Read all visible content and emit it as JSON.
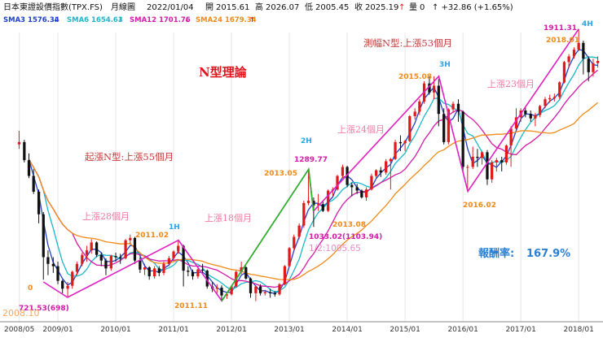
{
  "header": {
    "instrument": "日本東證設價指數(TPX.FS)",
    "period": "月線圖",
    "date": "2022/01/04",
    "open_label": "開",
    "open": "2015.61",
    "high_label": "高",
    "high": "2026.07",
    "low_label": "低",
    "low": "2005.45",
    "close_label": "收",
    "close": "2025.19",
    "close_arrow": "↑",
    "volume_label": "量",
    "volume": "0",
    "change": "↑ +32.86 (+1.65%)"
  },
  "ma_legend": [
    {
      "label": "SMA3 1576.34",
      "arrow": "↓",
      "color": "#1e40c8"
    },
    {
      "label": "SMA6 1654.63",
      "arrow": "↓",
      "color": "#19b8c8"
    },
    {
      "label": "SMA12 1701.76",
      "arrow": "↓",
      "color": "#d41aa8"
    },
    {
      "label": "SMA24 1679.34",
      "arrow": "↑",
      "color": "#f08a18"
    }
  ],
  "annotations": {
    "title": "N型理論",
    "start_up": "起漲N型:上漲55個月",
    "up28": "上漲28個月",
    "up18": "上漲18個月",
    "up24": "上漲24個月",
    "up23": "上漲23個月",
    "measured": "測幅N型:上漲53個月",
    "return_label": "報酬率:",
    "return_value": "167.9%"
  },
  "colors": {
    "up": "#e01a1a",
    "down": "#111111",
    "n_line": "#e020c0",
    "wave_green": "#22b822",
    "ma3": "#1e40c8",
    "ma6": "#19b8c8",
    "ma12": "#d41aa8",
    "ma24": "#f08a18",
    "tick_orange": "#f08a18",
    "tick_magenta": "#d41aa8",
    "tick_cyan": "#2aa6e6"
  },
  "chart_data": {
    "type": "candlestick",
    "period": "monthly",
    "x_tick_labels": [
      "2008/05",
      "2009/01",
      "2010/01",
      "2011/01",
      "2012/01",
      "2013/01",
      "2014/01",
      "2015/01",
      "2016/01",
      "2017/01",
      "2018/01"
    ],
    "price_labels": [
      {
        "text": "721.53(698)",
        "date": "2009/03",
        "price": 721.53
      },
      {
        "text": "2011.02",
        "date": "2011/02",
        "price": 1000
      },
      {
        "text": "2011.11",
        "date": "2011/11",
        "price": 706
      },
      {
        "text": "1289.77",
        "date": "2013/05",
        "price": 1289.77
      },
      {
        "text": "2013.05",
        "date": "2013/05",
        "price": 1289.77
      },
      {
        "text": "1033.02(1103.94)",
        "date": "2013/06",
        "price": 1033.02
      },
      {
        "text": "2013.08",
        "date": "2013/08",
        "price": 1106
      },
      {
        "text": "1/2:1005.65",
        "date": "2013/06",
        "price": 1005.65
      },
      {
        "text": "2015.08",
        "date": "2015/08",
        "price": 1702
      },
      {
        "text": "2016.02",
        "date": "2016/02",
        "price": 1192
      },
      {
        "text": "2018.01",
        "date": "2018/01",
        "price": 1911.31
      },
      {
        "text": "1911.31",
        "date": "2018/01",
        "price": 1911.31
      }
    ],
    "wave_labels": [
      "1H",
      "2H",
      "3H",
      "4H"
    ],
    "partial_labels": [
      "2008.10",
      "0"
    ],
    "n_pattern_points": [
      {
        "date": "2008/10",
        "price": 790
      },
      {
        "date": "2009/03",
        "price": 721.53
      },
      {
        "date": "2011/02",
        "price": 975
      },
      {
        "date": "2011/11",
        "price": 706
      },
      {
        "date": "2013/05",
        "price": 1289.77
      },
      {
        "date": "2013/06",
        "price": 1103.94
      },
      {
        "date": "2015/08",
        "price": 1702
      },
      {
        "date": "2016/02",
        "price": 1192
      },
      {
        "date": "2018/01",
        "price": 1911.31
      }
    ],
    "candles": [
      [
        2008.33,
        1400,
        1460,
        1380,
        1410
      ],
      [
        2008.42,
        1410,
        1420,
        1320,
        1330
      ],
      [
        2008.5,
        1330,
        1360,
        1250,
        1260
      ],
      [
        2008.58,
        1260,
        1290,
        1180,
        1190
      ],
      [
        2008.67,
        1190,
        1200,
        1050,
        1090
      ],
      [
        2008.75,
        1090,
        1100,
        800,
        900
      ],
      [
        2008.83,
        900,
        930,
        820,
        870
      ],
      [
        2008.92,
        870,
        900,
        830,
        860
      ],
      [
        2009.0,
        860,
        880,
        780,
        795
      ],
      [
        2009.08,
        795,
        800,
        740,
        760
      ],
      [
        2009.17,
        760,
        790,
        722,
        773
      ],
      [
        2009.25,
        773,
        840,
        760,
        835
      ],
      [
        2009.33,
        835,
        880,
        820,
        870
      ],
      [
        2009.42,
        870,
        920,
        860,
        910
      ],
      [
        2009.5,
        910,
        950,
        880,
        930
      ],
      [
        2009.58,
        930,
        980,
        915,
        965
      ],
      [
        2009.67,
        965,
        970,
        900,
        910
      ],
      [
        2009.75,
        910,
        920,
        860,
        885
      ],
      [
        2009.83,
        885,
        895,
        820,
        850
      ],
      [
        2009.92,
        850,
        910,
        840,
        905
      ],
      [
        2010.0,
        905,
        920,
        880,
        900
      ],
      [
        2010.08,
        900,
        915,
        870,
        895
      ],
      [
        2010.17,
        895,
        980,
        890,
        975
      ],
      [
        2010.25,
        975,
        1000,
        960,
        985
      ],
      [
        2010.33,
        985,
        990,
        870,
        885
      ],
      [
        2010.42,
        885,
        900,
        830,
        845
      ],
      [
        2010.5,
        845,
        870,
        820,
        855
      ],
      [
        2010.58,
        855,
        860,
        800,
        815
      ],
      [
        2010.67,
        815,
        860,
        805,
        850
      ],
      [
        2010.75,
        850,
        860,
        815,
        830
      ],
      [
        2010.83,
        830,
        880,
        820,
        870
      ],
      [
        2010.92,
        870,
        905,
        860,
        895
      ],
      [
        2011.0,
        895,
        930,
        885,
        925
      ],
      [
        2011.08,
        925,
        975,
        915,
        950
      ],
      [
        2011.17,
        950,
        955,
        770,
        840
      ],
      [
        2011.25,
        840,
        860,
        815,
        835
      ],
      [
        2011.33,
        835,
        845,
        800,
        815
      ],
      [
        2011.42,
        815,
        850,
        805,
        845
      ],
      [
        2011.5,
        845,
        870,
        830,
        840
      ],
      [
        2011.58,
        840,
        845,
        760,
        770
      ],
      [
        2011.67,
        770,
        790,
        745,
        760
      ],
      [
        2011.75,
        760,
        780,
        740,
        765
      ],
      [
        2011.83,
        765,
        775,
        706,
        730
      ],
      [
        2011.92,
        730,
        745,
        715,
        735
      ],
      [
        2012.0,
        735,
        775,
        730,
        770
      ],
      [
        2012.08,
        770,
        840,
        765,
        835
      ],
      [
        2012.17,
        835,
        880,
        825,
        855
      ],
      [
        2012.25,
        855,
        860,
        800,
        805
      ],
      [
        2012.33,
        805,
        810,
        720,
        740
      ],
      [
        2012.42,
        740,
        775,
        705,
        770
      ],
      [
        2012.5,
        770,
        780,
        730,
        740
      ],
      [
        2012.58,
        740,
        755,
        730,
        745
      ],
      [
        2012.67,
        745,
        760,
        720,
        740
      ],
      [
        2012.75,
        740,
        750,
        725,
        735
      ],
      [
        2012.83,
        735,
        785,
        730,
        780
      ],
      [
        2012.92,
        780,
        865,
        775,
        860
      ],
      [
        2013.0,
        860,
        945,
        855,
        940
      ],
      [
        2013.08,
        940,
        1000,
        930,
        990
      ],
      [
        2013.17,
        990,
        1050,
        980,
        1040
      ],
      [
        2013.25,
        1040,
        1150,
        1030,
        1140
      ],
      [
        2013.33,
        1140,
        1290,
        1130,
        1150
      ],
      [
        2013.42,
        1150,
        1165,
        1034,
        1130
      ],
      [
        2013.5,
        1130,
        1180,
        1105,
        1135
      ],
      [
        2013.58,
        1135,
        1150,
        1100,
        1105
      ],
      [
        2013.67,
        1105,
        1200,
        1100,
        1195
      ],
      [
        2013.75,
        1195,
        1210,
        1170,
        1200
      ],
      [
        2013.83,
        1200,
        1265,
        1195,
        1260
      ],
      [
        2013.92,
        1260,
        1310,
        1250,
        1300
      ],
      [
        2014.0,
        1300,
        1305,
        1210,
        1220
      ],
      [
        2014.08,
        1220,
        1230,
        1170,
        1210
      ],
      [
        2014.17,
        1210,
        1225,
        1180,
        1195
      ],
      [
        2014.25,
        1195,
        1200,
        1160,
        1165
      ],
      [
        2014.33,
        1165,
        1210,
        1150,
        1200
      ],
      [
        2014.42,
        1200,
        1270,
        1195,
        1260
      ],
      [
        2014.5,
        1260,
        1290,
        1250,
        1285
      ],
      [
        2014.58,
        1285,
        1300,
        1255,
        1275
      ],
      [
        2014.67,
        1275,
        1335,
        1265,
        1325
      ],
      [
        2014.75,
        1325,
        1340,
        1200,
        1335
      ],
      [
        2014.83,
        1335,
        1420,
        1330,
        1410
      ],
      [
        2014.92,
        1410,
        1440,
        1370,
        1405
      ],
      [
        2015.0,
        1405,
        1420,
        1370,
        1415
      ],
      [
        2015.08,
        1415,
        1530,
        1410,
        1525
      ],
      [
        2015.17,
        1525,
        1560,
        1510,
        1545
      ],
      [
        2015.25,
        1545,
        1600,
        1530,
        1590
      ],
      [
        2015.33,
        1590,
        1680,
        1580,
        1670
      ],
      [
        2015.42,
        1670,
        1700,
        1620,
        1630
      ],
      [
        2015.5,
        1630,
        1702,
        1600,
        1660
      ],
      [
        2015.58,
        1660,
        1690,
        1480,
        1535
      ],
      [
        2015.67,
        1535,
        1560,
        1400,
        1410
      ],
      [
        2015.75,
        1410,
        1560,
        1400,
        1555
      ],
      [
        2015.83,
        1555,
        1590,
        1540,
        1580
      ],
      [
        2015.92,
        1580,
        1600,
        1500,
        1545
      ],
      [
        2016.0,
        1545,
        1550,
        1280,
        1300
      ],
      [
        2016.08,
        1300,
        1310,
        1192,
        1300
      ],
      [
        2016.17,
        1300,
        1390,
        1290,
        1345
      ],
      [
        2016.25,
        1345,
        1380,
        1300,
        1340
      ],
      [
        2016.33,
        1340,
        1370,
        1310,
        1365
      ],
      [
        2016.42,
        1365,
        1375,
        1220,
        1245
      ],
      [
        2016.5,
        1245,
        1330,
        1230,
        1320
      ],
      [
        2016.58,
        1320,
        1340,
        1280,
        1330
      ],
      [
        2016.67,
        1330,
        1345,
        1280,
        1320
      ],
      [
        2016.75,
        1320,
        1400,
        1310,
        1395
      ],
      [
        2016.83,
        1395,
        1480,
        1300,
        1470
      ],
      [
        2016.92,
        1470,
        1560,
        1460,
        1520
      ],
      [
        2017.0,
        1520,
        1560,
        1500,
        1550
      ],
      [
        2017.08,
        1550,
        1570,
        1520,
        1535
      ],
      [
        2017.17,
        1535,
        1550,
        1500,
        1515
      ],
      [
        2017.25,
        1515,
        1540,
        1480,
        1530
      ],
      [
        2017.33,
        1530,
        1575,
        1520,
        1570
      ],
      [
        2017.42,
        1570,
        1610,
        1560,
        1600
      ],
      [
        2017.5,
        1600,
        1620,
        1585,
        1605
      ],
      [
        2017.58,
        1605,
        1625,
        1590,
        1610
      ],
      [
        2017.67,
        1610,
        1680,
        1600,
        1675
      ],
      [
        2017.75,
        1675,
        1770,
        1670,
        1765
      ],
      [
        2017.83,
        1765,
        1800,
        1740,
        1790
      ],
      [
        2017.92,
        1790,
        1830,
        1780,
        1820
      ],
      [
        2018.0,
        1820,
        1911,
        1815,
        1850
      ],
      [
        2018.08,
        1850,
        1860,
        1710,
        1780
      ],
      [
        2018.17,
        1780,
        1790,
        1680,
        1720
      ],
      [
        2018.25,
        1720,
        1780,
        1700,
        1760
      ],
      [
        2018.33,
        1760,
        1790,
        1740,
        1770
      ]
    ]
  }
}
